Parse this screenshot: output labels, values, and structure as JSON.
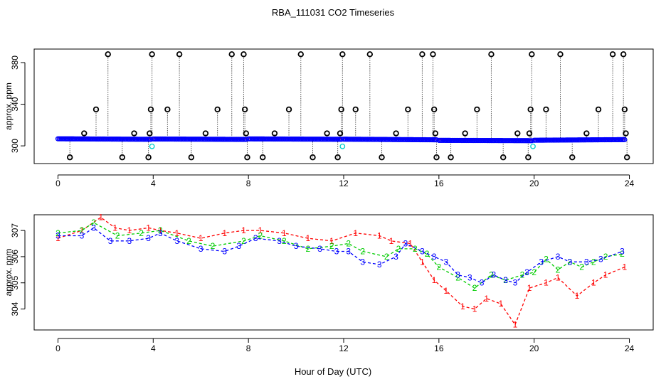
{
  "title": "RBA_111031  CO2 Timeseries",
  "xlabel": "Hour of Day (UTC)",
  "chart_data": [
    {
      "id": "top",
      "type": "scatter",
      "title": "RBA_111031  CO2 Timeseries",
      "xlabel": "",
      "ylabel": "approx. ppm",
      "xlim": [
        -1,
        25
      ],
      "ylim": [
        283,
        393
      ],
      "xticks": [
        0,
        4,
        8,
        12,
        16,
        20,
        24
      ],
      "yticks": [
        300,
        340,
        380
      ],
      "baseline_segments": [
        {
          "x0": 0.0,
          "x1": 3.9,
          "y0": 306.8,
          "y1": 306.3
        },
        {
          "x0": 4.0,
          "x1": 7.9,
          "y0": 306.6,
          "y1": 306.2
        },
        {
          "x0": 8.0,
          "x1": 11.9,
          "y0": 306.7,
          "y1": 306.3
        },
        {
          "x0": 12.0,
          "x1": 15.9,
          "y0": 306.4,
          "y1": 305.8
        },
        {
          "x0": 16.0,
          "x1": 19.9,
          "y0": 305.3,
          "y1": 305.0
        },
        {
          "x0": 20.0,
          "x1": 23.8,
          "y0": 305.4,
          "y1": 306.0
        }
      ],
      "spikes": [
        {
          "x": 0.5,
          "y": 289
        },
        {
          "x": 1.1,
          "y": 312
        },
        {
          "x": 1.6,
          "y": 335
        },
        {
          "x": 2.1,
          "y": 388
        },
        {
          "x": 2.7,
          "y": 289
        },
        {
          "x": 3.2,
          "y": 312
        },
        {
          "x": 3.8,
          "y": 289
        },
        {
          "x": 3.85,
          "y": 312
        },
        {
          "x": 3.9,
          "y": 335
        },
        {
          "x": 3.95,
          "y": 388
        },
        {
          "x": 4.6,
          "y": 335
        },
        {
          "x": 5.1,
          "y": 388
        },
        {
          "x": 5.6,
          "y": 289
        },
        {
          "x": 6.2,
          "y": 312
        },
        {
          "x": 6.7,
          "y": 335
        },
        {
          "x": 7.3,
          "y": 388
        },
        {
          "x": 7.8,
          "y": 388
        },
        {
          "x": 7.85,
          "y": 335
        },
        {
          "x": 7.9,
          "y": 312
        },
        {
          "x": 7.95,
          "y": 289
        },
        {
          "x": 8.6,
          "y": 289
        },
        {
          "x": 9.1,
          "y": 312
        },
        {
          "x": 9.7,
          "y": 335
        },
        {
          "x": 10.2,
          "y": 388
        },
        {
          "x": 10.7,
          "y": 289
        },
        {
          "x": 11.3,
          "y": 312
        },
        {
          "x": 11.75,
          "y": 289
        },
        {
          "x": 11.85,
          "y": 312
        },
        {
          "x": 11.9,
          "y": 335
        },
        {
          "x": 11.95,
          "y": 388
        },
        {
          "x": 12.5,
          "y": 335
        },
        {
          "x": 13.1,
          "y": 388
        },
        {
          "x": 13.6,
          "y": 289
        },
        {
          "x": 14.2,
          "y": 312
        },
        {
          "x": 14.7,
          "y": 335
        },
        {
          "x": 15.3,
          "y": 388
        },
        {
          "x": 15.75,
          "y": 388
        },
        {
          "x": 15.8,
          "y": 335
        },
        {
          "x": 15.85,
          "y": 312
        },
        {
          "x": 15.9,
          "y": 289
        },
        {
          "x": 16.5,
          "y": 289
        },
        {
          "x": 17.1,
          "y": 312
        },
        {
          "x": 17.6,
          "y": 335
        },
        {
          "x": 18.2,
          "y": 388
        },
        {
          "x": 18.7,
          "y": 289
        },
        {
          "x": 19.3,
          "y": 312
        },
        {
          "x": 19.75,
          "y": 289
        },
        {
          "x": 19.8,
          "y": 312
        },
        {
          "x": 19.85,
          "y": 335
        },
        {
          "x": 19.9,
          "y": 388
        },
        {
          "x": 20.5,
          "y": 335
        },
        {
          "x": 21.1,
          "y": 388
        },
        {
          "x": 21.6,
          "y": 289
        },
        {
          "x": 22.2,
          "y": 312
        },
        {
          "x": 22.7,
          "y": 335
        },
        {
          "x": 23.3,
          "y": 388
        },
        {
          "x": 23.75,
          "y": 388
        },
        {
          "x": 23.8,
          "y": 335
        },
        {
          "x": 23.85,
          "y": 312
        },
        {
          "x": 23.9,
          "y": 289
        }
      ],
      "calibration_points": [
        {
          "x": 3.95,
          "y": 299.5
        },
        {
          "x": 11.95,
          "y": 299.5
        },
        {
          "x": 19.95,
          "y": 299.5
        }
      ],
      "colors": {
        "spike": "#000000",
        "series": "#0000ff",
        "trend": "#ff0000",
        "calibration": "#00cccc"
      }
    },
    {
      "id": "bottom",
      "type": "scatter",
      "xlabel": "Hour of Day (UTC)",
      "ylabel": "approx. ppm",
      "xlim": [
        -1,
        25
      ],
      "ylim": [
        303.2,
        307.6
      ],
      "xticks": [
        0,
        4,
        8,
        12,
        16,
        20,
        24
      ],
      "yticks": [
        304,
        305,
        306,
        307
      ],
      "series": [
        {
          "name": "1",
          "symbol": "1",
          "color": "#ff0000",
          "points": [
            [
              0.0,
              306.7
            ],
            [
              1.0,
              307.0
            ],
            [
              1.8,
              307.5
            ],
            [
              2.4,
              307.1
            ],
            [
              3.0,
              307.0
            ],
            [
              3.8,
              307.1
            ],
            [
              4.3,
              307.0
            ],
            [
              5.0,
              306.9
            ],
            [
              6.0,
              306.7
            ],
            [
              7.0,
              306.9
            ],
            [
              7.8,
              307.0
            ],
            [
              8.5,
              307.0
            ],
            [
              9.5,
              306.9
            ],
            [
              10.5,
              306.7
            ],
            [
              11.5,
              306.6
            ],
            [
              12.5,
              306.9
            ],
            [
              13.5,
              306.8
            ],
            [
              14.0,
              306.6
            ],
            [
              14.8,
              306.5
            ],
            [
              15.3,
              305.8
            ],
            [
              15.8,
              305.1
            ],
            [
              16.3,
              304.7
            ],
            [
              17.0,
              304.1
            ],
            [
              17.5,
              304.0
            ],
            [
              18.0,
              304.4
            ],
            [
              18.6,
              304.2
            ],
            [
              19.2,
              303.4
            ],
            [
              19.8,
              304.8
            ],
            [
              20.5,
              305.0
            ],
            [
              21.0,
              305.2
            ],
            [
              21.8,
              304.5
            ],
            [
              22.5,
              305.0
            ],
            [
              23.0,
              305.3
            ],
            [
              23.8,
              305.6
            ]
          ]
        },
        {
          "name": "2",
          "symbol": "2",
          "color": "#00cc00",
          "points": [
            [
              0.0,
              306.9
            ],
            [
              1.0,
              307.0
            ],
            [
              1.5,
              307.3
            ],
            [
              2.5,
              306.8
            ],
            [
              3.5,
              306.9
            ],
            [
              4.3,
              307.0
            ],
            [
              5.5,
              306.6
            ],
            [
              6.5,
              306.4
            ],
            [
              7.8,
              306.6
            ],
            [
              8.5,
              306.8
            ],
            [
              9.5,
              306.6
            ],
            [
              10.5,
              306.3
            ],
            [
              11.5,
              306.4
            ],
            [
              12.2,
              306.5
            ],
            [
              12.8,
              306.2
            ],
            [
              13.8,
              306.0
            ],
            [
              14.3,
              306.3
            ],
            [
              15.0,
              306.3
            ],
            [
              15.5,
              306.1
            ],
            [
              16.0,
              305.6
            ],
            [
              16.8,
              305.2
            ],
            [
              17.5,
              304.8
            ],
            [
              18.2,
              305.3
            ],
            [
              18.8,
              305.1
            ],
            [
              19.5,
              305.3
            ],
            [
              20.0,
              305.4
            ],
            [
              20.5,
              305.9
            ],
            [
              21.0,
              305.5
            ],
            [
              21.5,
              305.8
            ],
            [
              22.0,
              305.6
            ],
            [
              22.5,
              305.8
            ],
            [
              23.0,
              306.0
            ],
            [
              23.7,
              306.1
            ]
          ]
        },
        {
          "name": "3",
          "symbol": "3",
          "color": "#0000ff",
          "points": [
            [
              0.0,
              306.8
            ],
            [
              1.0,
              306.8
            ],
            [
              1.5,
              307.1
            ],
            [
              2.2,
              306.6
            ],
            [
              3.0,
              306.6
            ],
            [
              3.8,
              306.7
            ],
            [
              4.3,
              306.9
            ],
            [
              5.0,
              306.6
            ],
            [
              6.0,
              306.3
            ],
            [
              7.0,
              306.2
            ],
            [
              7.6,
              306.4
            ],
            [
              8.3,
              306.7
            ],
            [
              9.3,
              306.6
            ],
            [
              10.0,
              306.4
            ],
            [
              11.0,
              306.3
            ],
            [
              11.7,
              306.2
            ],
            [
              12.2,
              306.2
            ],
            [
              12.8,
              305.8
            ],
            [
              13.5,
              305.7
            ],
            [
              14.2,
              306.0
            ],
            [
              14.6,
              306.5
            ],
            [
              15.3,
              306.2
            ],
            [
              15.8,
              306.0
            ],
            [
              16.3,
              305.8
            ],
            [
              16.8,
              305.3
            ],
            [
              17.3,
              305.2
            ],
            [
              17.8,
              305.0
            ],
            [
              18.3,
              305.3
            ],
            [
              18.8,
              305.1
            ],
            [
              19.2,
              305.0
            ],
            [
              19.7,
              305.4
            ],
            [
              20.3,
              305.8
            ],
            [
              21.0,
              306.0
            ],
            [
              21.5,
              305.8
            ],
            [
              22.2,
              305.8
            ],
            [
              22.8,
              305.9
            ],
            [
              23.7,
              306.2
            ]
          ]
        }
      ]
    }
  ]
}
